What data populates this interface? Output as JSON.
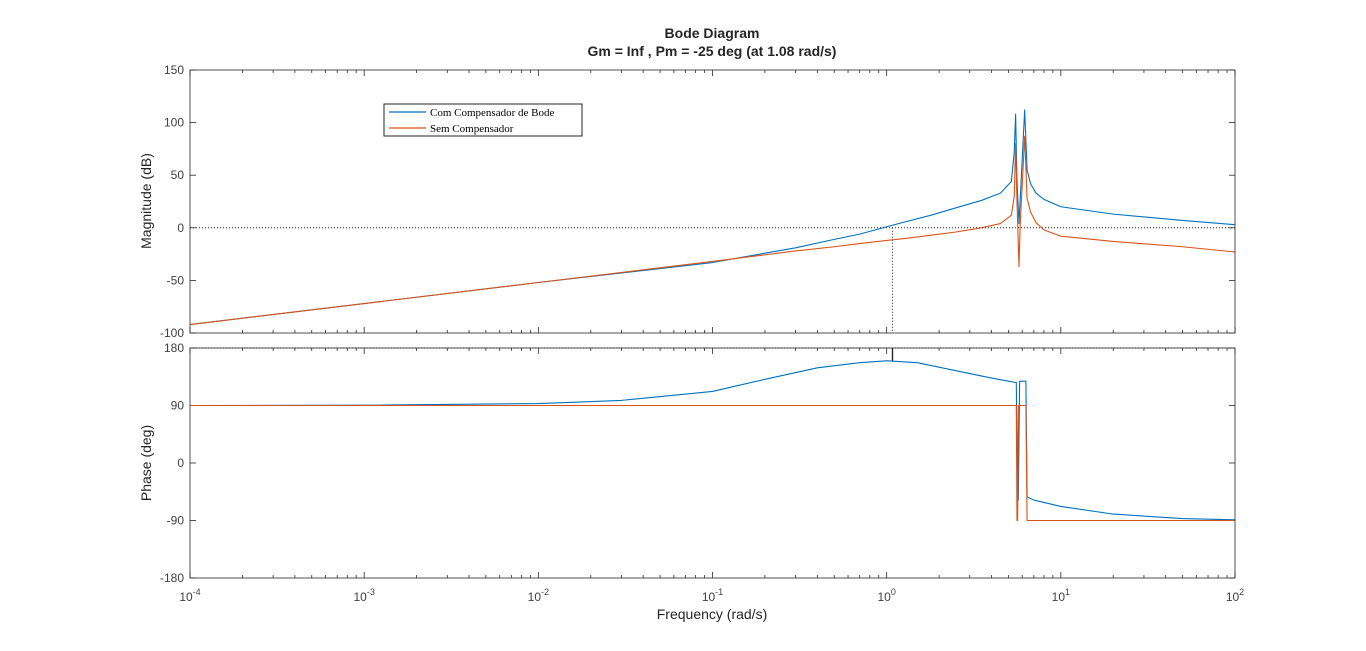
{
  "chart_data": {
    "type": "line",
    "title": "Bode Diagram",
    "subtitle": "Gm = Inf ,  Pm = -25 deg (at 1.08 rad/s)",
    "xlabel": "Frequency  (rad/s)",
    "x_scale": "log",
    "xlim": [
      0.0001,
      100
    ],
    "x_tick_labels": [
      {
        "base": "10",
        "exp": "-4"
      },
      {
        "base": "10",
        "exp": "-3"
      },
      {
        "base": "10",
        "exp": "-2"
      },
      {
        "base": "10",
        "exp": "-1"
      },
      {
        "base": "10",
        "exp": "0"
      },
      {
        "base": "10",
        "exp": "1"
      },
      {
        "base": "10",
        "exp": "2"
      }
    ],
    "legend": {
      "placement": "upper-left",
      "entries": [
        "Com Compensador de Bode",
        "Sem Compensador"
      ]
    },
    "crossover_frequency": 1.08,
    "colors": {
      "compensated": "#0072BD",
      "uncompensated": "#D95319",
      "reference": "#262626"
    },
    "magnitude": {
      "ylabel": "Magnitude (dB)",
      "ylim": [
        -100,
        150
      ],
      "yticks": [
        "150",
        "100",
        "50",
        "0",
        "-50",
        "-100"
      ],
      "series": [
        {
          "name": "Com Compensador de Bode",
          "x": [
            0.0001,
            0.001,
            0.01,
            0.1,
            0.3,
            0.5,
            0.7,
            1.0,
            1.3,
            1.8,
            2.5,
            3.5,
            4.5,
            5.2,
            5.4,
            5.5,
            5.6,
            5.75,
            5.85,
            6.0,
            6.2,
            6.4,
            6.7,
            7.2,
            8.0,
            10,
            20,
            50,
            100
          ],
          "y": [
            -92,
            -72,
            -52,
            -33,
            -19,
            -11,
            -6,
            1,
            6,
            12,
            19,
            26,
            33,
            44,
            72,
            108,
            45,
            4,
            28,
            65,
            112,
            55,
            42,
            33,
            27,
            20,
            13,
            7,
            3
          ]
        },
        {
          "name": "Sem Compensador",
          "x": [
            0.0001,
            0.001,
            0.01,
            0.1,
            0.3,
            0.5,
            0.7,
            1.0,
            1.3,
            1.8,
            2.5,
            3.5,
            4.5,
            5.2,
            5.4,
            5.5,
            5.6,
            5.75,
            5.85,
            6.0,
            6.2,
            6.4,
            6.7,
            7.2,
            8.0,
            10,
            20,
            50,
            100
          ],
          "y": [
            -92,
            -72,
            -52,
            -32,
            -22,
            -18,
            -15,
            -12,
            -10,
            -7,
            -4,
            0,
            4,
            12,
            30,
            80,
            25,
            -37,
            5,
            40,
            87,
            28,
            15,
            5,
            -2,
            -8,
            -13,
            -18,
            -23
          ]
        }
      ]
    },
    "phase": {
      "ylabel": "Phase (deg)",
      "ylim": [
        -180,
        180
      ],
      "yticks": [
        "180",
        "90",
        "0",
        "-90",
        "-180"
      ],
      "series": [
        {
          "name": "Com Compensador de Bode",
          "x": [
            0.0001,
            0.001,
            0.01,
            0.03,
            0.1,
            0.2,
            0.4,
            0.7,
            1.0,
            1.5,
            2.0,
            3.0,
            4.0,
            5.0,
            5.5,
            5.55,
            5.65,
            5.7,
            5.8,
            5.85,
            5.9,
            6.0,
            6.2,
            6.3,
            6.4,
            7.0,
            10,
            20,
            50,
            100
          ],
          "y": [
            90,
            90.5,
            93,
            98,
            112,
            131,
            149,
            157,
            160,
            157,
            150,
            140,
            133,
            128,
            126,
            126,
            -58,
            -58,
            128,
            128,
            128,
            128,
            128,
            128,
            -53,
            -58,
            -68,
            -80,
            -87,
            -89
          ]
        },
        {
          "name": "Sem Compensador",
          "x": [
            0.0001,
            1.0,
            5.5,
            5.55,
            5.6,
            5.65,
            5.7,
            5.75,
            5.85,
            6.0,
            6.3,
            6.4,
            6.5,
            100
          ],
          "y": [
            90,
            90,
            90,
            90,
            -90,
            -90,
            90,
            90,
            90,
            90,
            90,
            -90,
            -90,
            -90
          ]
        }
      ]
    }
  }
}
